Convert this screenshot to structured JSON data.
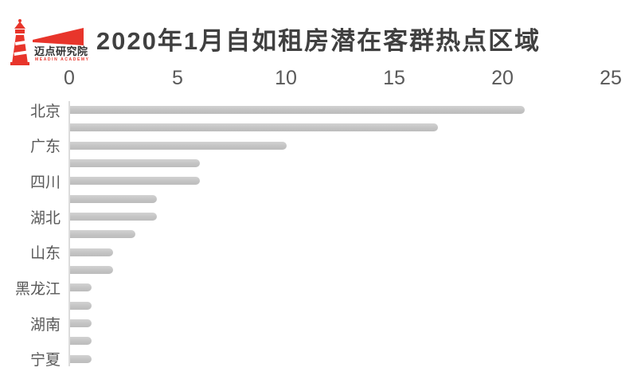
{
  "logo": {
    "name_cn": "迈点研究院",
    "name_en": "MEADIN ACADEMY"
  },
  "colors": {
    "accent_red": "#e8352b",
    "title_text": "#404040",
    "axis_text": "#595959",
    "axis_line": "#dcdcdc",
    "bar": "#c4c4c4"
  },
  "chart_data": {
    "type": "bar",
    "orientation": "horizontal",
    "title": "2020年1月自如租房潜在客群热点区域",
    "xlabel": "",
    "ylabel": "",
    "xlim": [
      0,
      25
    ],
    "x_ticks": [
      0,
      5,
      10,
      15,
      20,
      25
    ],
    "value_axis_position": "top",
    "grid": false,
    "legend": false,
    "bar_color": "#c4c4c4",
    "label_interval_note": "category labels shown on every other bar",
    "bars": [
      {
        "label": "北京",
        "value": 21
      },
      {
        "label": "",
        "value": 17
      },
      {
        "label": "广东",
        "value": 10
      },
      {
        "label": "",
        "value": 6
      },
      {
        "label": "四川",
        "value": 6
      },
      {
        "label": "",
        "value": 4
      },
      {
        "label": "湖北",
        "value": 4
      },
      {
        "label": "",
        "value": 3
      },
      {
        "label": "山东",
        "value": 2
      },
      {
        "label": "",
        "value": 2
      },
      {
        "label": "黑龙江",
        "value": 1
      },
      {
        "label": "",
        "value": 1
      },
      {
        "label": "湖南",
        "value": 1
      },
      {
        "label": "",
        "value": 1
      },
      {
        "label": "宁夏",
        "value": 1
      }
    ]
  }
}
